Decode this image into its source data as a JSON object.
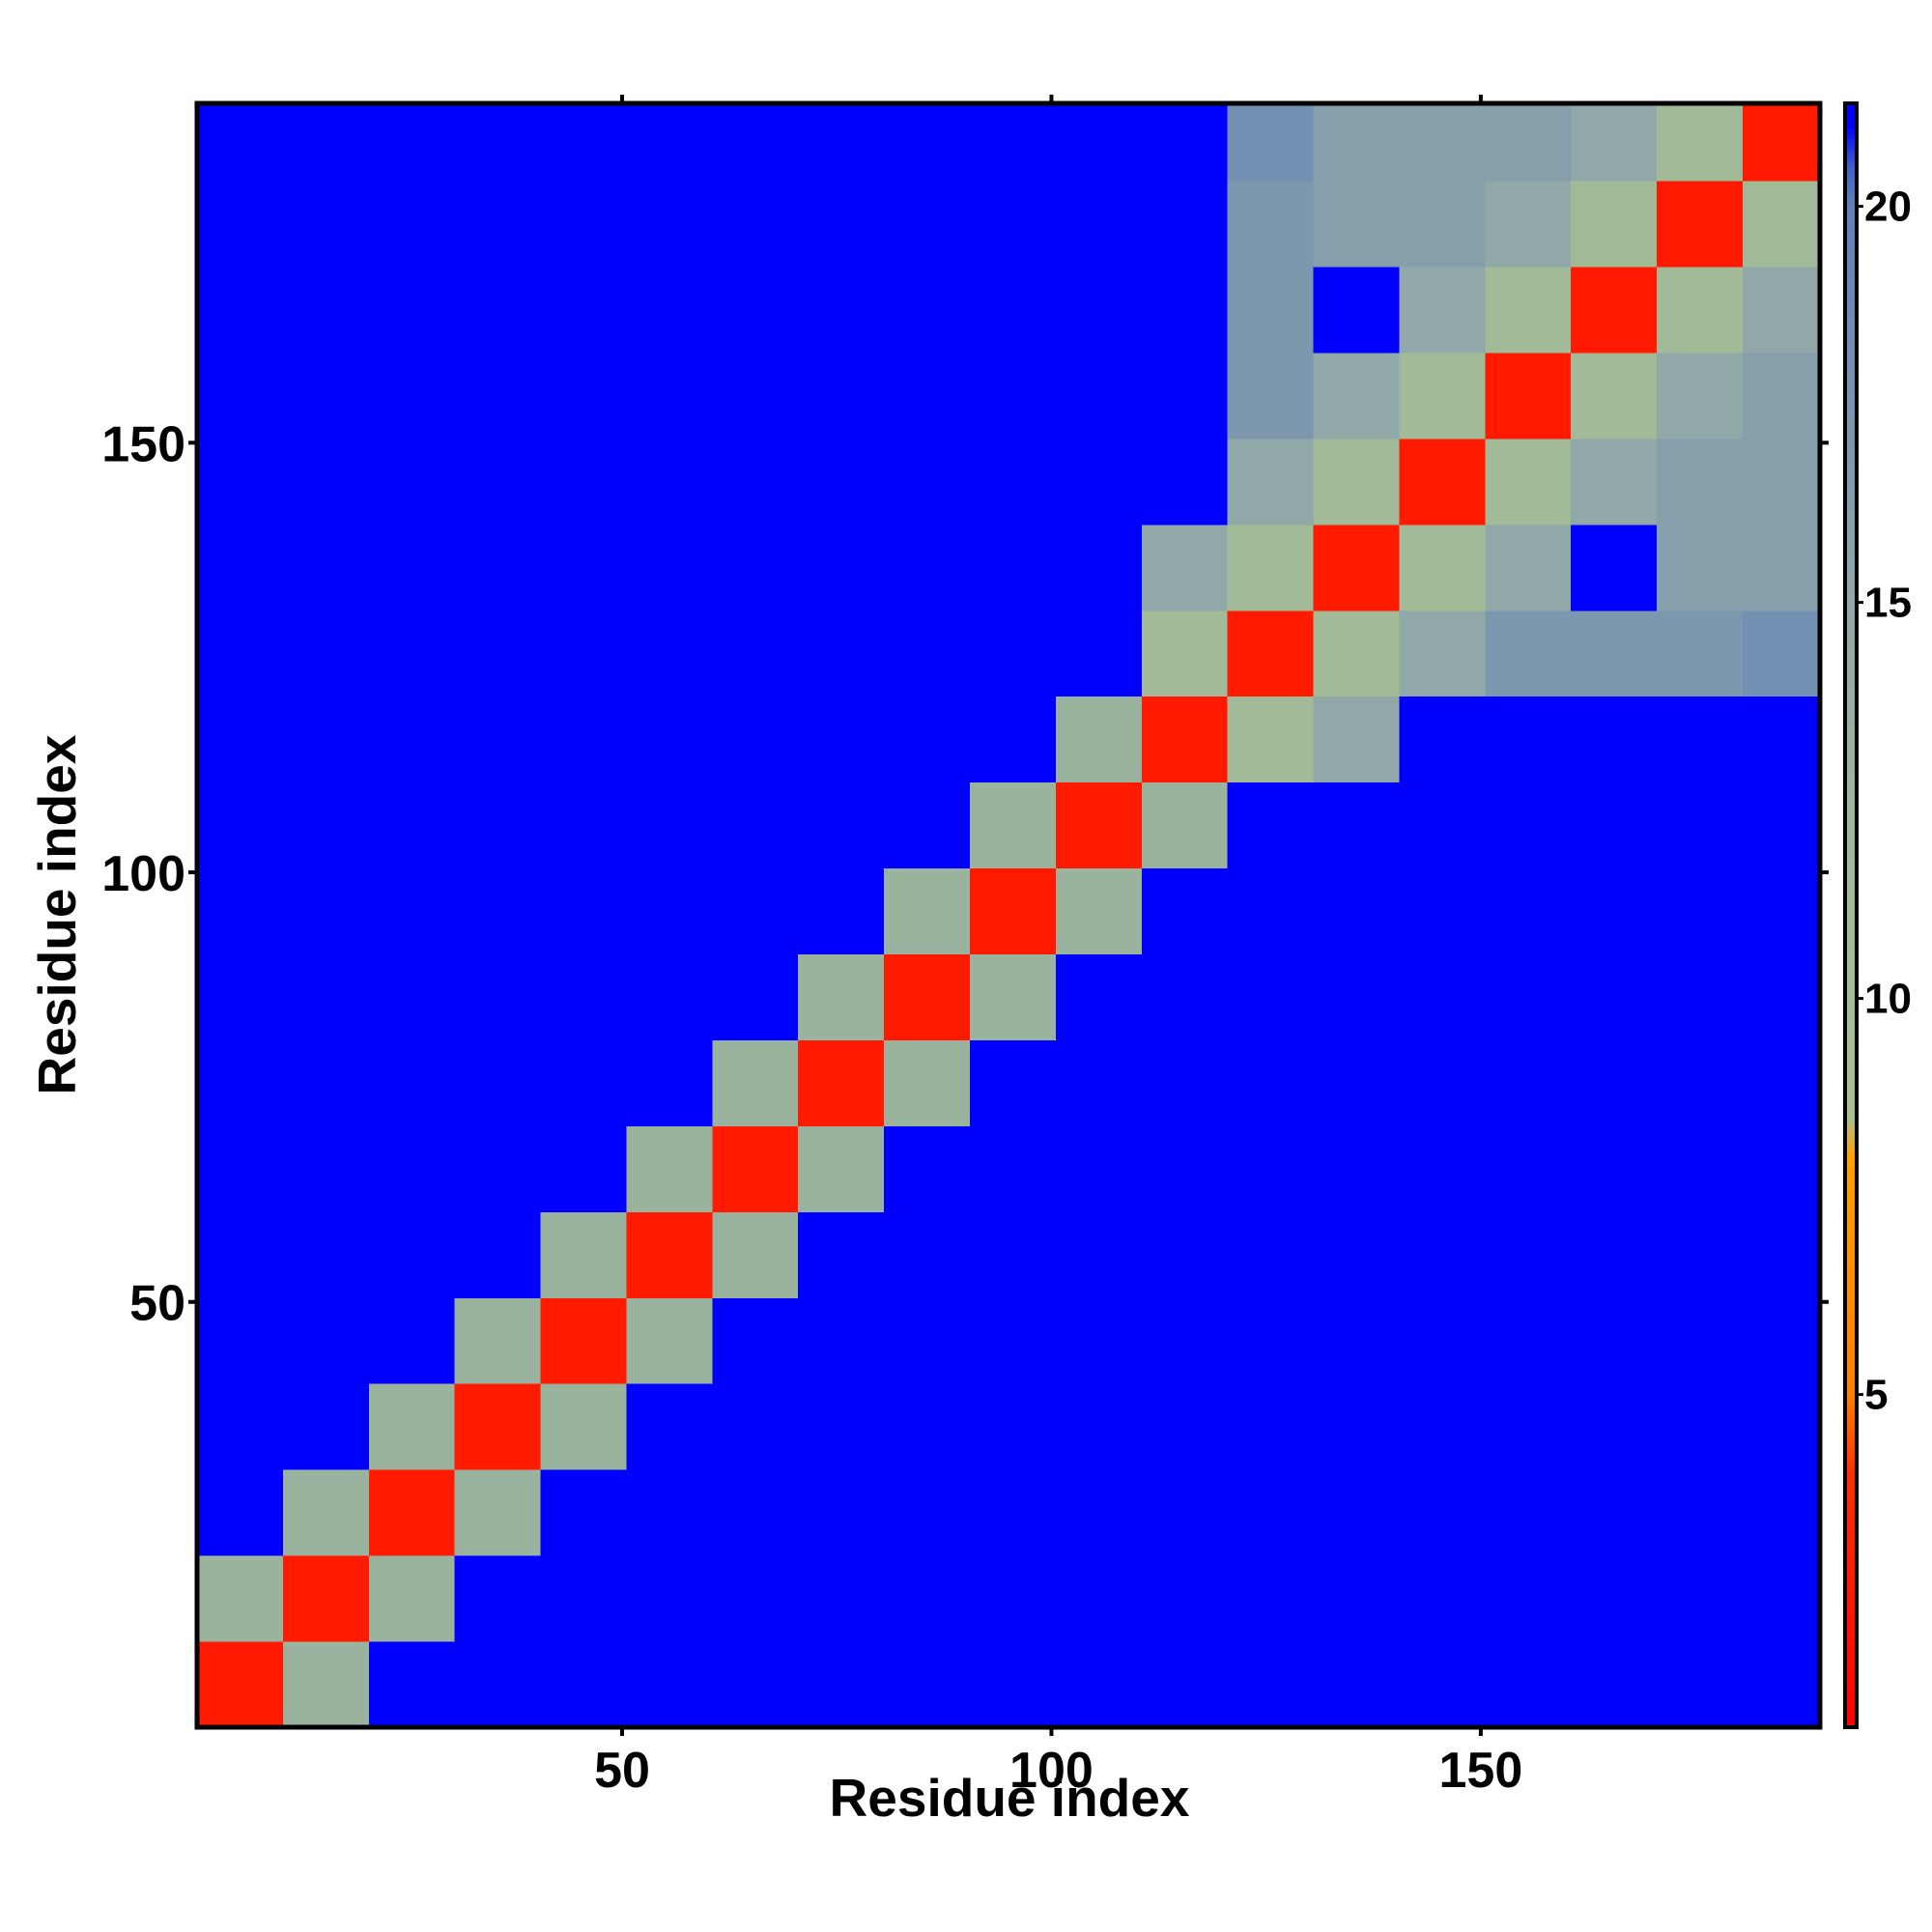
{
  "chart_data": {
    "type": "heatmap",
    "xlabel": "Residue index",
    "ylabel": "Residue index",
    "x_bins": [
      0.5,
      10.5,
      20.5,
      30.5,
      40.5,
      50.5,
      60.5,
      70.5,
      80.5,
      90.5,
      100.5,
      110.5,
      120.5,
      130.5,
      140.5,
      150.5,
      160.5,
      170.5,
      180.5,
      189.5
    ],
    "y_bins": [
      0.5,
      10.5,
      20.5,
      30.5,
      40.5,
      50.5,
      60.5,
      70.5,
      80.5,
      90.5,
      100.5,
      110.5,
      120.5,
      130.5,
      140.5,
      150.5,
      160.5,
      170.5,
      180.5,
      189.5
    ],
    "xlim": [
      0.5,
      189.5
    ],
    "ylim": [
      0.5,
      189.5
    ],
    "xticks": [
      50,
      100,
      150
    ],
    "yticks": [
      50,
      100,
      150
    ],
    "zlim": [
      0.8,
      21.3
    ],
    "zticks": [
      5,
      10,
      15,
      20
    ],
    "colorscale": [
      [
        0.8,
        "#ff0000"
      ],
      [
        4,
        "#ff3000"
      ],
      [
        5,
        "#ff8000"
      ],
      [
        8,
        "#ffa000"
      ],
      [
        8.5,
        "#a8c090"
      ],
      [
        12,
        "#9fb89a"
      ],
      [
        15,
        "#90a8a8"
      ],
      [
        20,
        "#6080b8"
      ],
      [
        20.5,
        "#4060c8"
      ],
      [
        21,
        "#0000ff"
      ]
    ],
    "z": [
      [
        2.5,
        13,
        21,
        21,
        21,
        21,
        21,
        21,
        21,
        21,
        21,
        21,
        21,
        21,
        21,
        21,
        21,
        21,
        21
      ],
      [
        13,
        2.5,
        13,
        21,
        21,
        21,
        21,
        21,
        21,
        21,
        21,
        21,
        21,
        21,
        21,
        21,
        21,
        21,
        21
      ],
      [
        21,
        13,
        2.5,
        13,
        21,
        21,
        21,
        21,
        21,
        21,
        21,
        21,
        21,
        21,
        21,
        21,
        21,
        21,
        21
      ],
      [
        21,
        21,
        13,
        2.5,
        13,
        21,
        21,
        21,
        21,
        21,
        21,
        21,
        21,
        21,
        21,
        21,
        21,
        21,
        21
      ],
      [
        21,
        21,
        21,
        13,
        2.5,
        13,
        21,
        21,
        21,
        21,
        21,
        21,
        21,
        21,
        21,
        21,
        21,
        21,
        21
      ],
      [
        21,
        21,
        21,
        21,
        13,
        2.5,
        13,
        21,
        21,
        21,
        21,
        21,
        21,
        21,
        21,
        21,
        21,
        21,
        21
      ],
      [
        21,
        21,
        21,
        21,
        21,
        13,
        2.5,
        13,
        21,
        21,
        21,
        21,
        21,
        21,
        21,
        21,
        21,
        21,
        21
      ],
      [
        21,
        21,
        21,
        21,
        21,
        21,
        13,
        2.5,
        13,
        21,
        21,
        21,
        21,
        21,
        21,
        21,
        21,
        21,
        21
      ],
      [
        21,
        21,
        21,
        21,
        21,
        21,
        21,
        13,
        2.5,
        13,
        21,
        21,
        21,
        21,
        21,
        21,
        21,
        21,
        21
      ],
      [
        21,
        21,
        21,
        21,
        21,
        21,
        21,
        21,
        13,
        2.5,
        13,
        21,
        21,
        21,
        21,
        21,
        21,
        21,
        21
      ],
      [
        21,
        21,
        21,
        21,
        21,
        21,
        21,
        21,
        21,
        13,
        2.5,
        13,
        21,
        21,
        21,
        21,
        21,
        21,
        21
      ],
      [
        21,
        21,
        21,
        21,
        21,
        21,
        21,
        21,
        21,
        21,
        13,
        2.5,
        11,
        15,
        21,
        21,
        21,
        21,
        21
      ],
      [
        21,
        21,
        21,
        21,
        21,
        21,
        21,
        21,
        21,
        21,
        21,
        11,
        2.5,
        11,
        15,
        17,
        17,
        17,
        18
      ],
      [
        21,
        21,
        21,
        21,
        21,
        21,
        21,
        21,
        21,
        21,
        21,
        15,
        11,
        2.5,
        11,
        15,
        21,
        16,
        16
      ],
      [
        21,
        21,
        21,
        21,
        21,
        21,
        21,
        21,
        21,
        21,
        21,
        21,
        15,
        11,
        2.5,
        11,
        15,
        16,
        16
      ],
      [
        21,
        21,
        21,
        21,
        21,
        21,
        21,
        21,
        21,
        21,
        21,
        21,
        17,
        15,
        11,
        2.5,
        11,
        15,
        16
      ],
      [
        21,
        21,
        21,
        21,
        21,
        21,
        21,
        21,
        21,
        21,
        21,
        21,
        17,
        21,
        15,
        11,
        2.5,
        11,
        15
      ],
      [
        21,
        21,
        21,
        21,
        21,
        21,
        21,
        21,
        21,
        21,
        21,
        21,
        17,
        16,
        16,
        15,
        11,
        2.5,
        11
      ],
      [
        21,
        21,
        21,
        21,
        21,
        21,
        21,
        21,
        21,
        21,
        21,
        21,
        18,
        16,
        16,
        16,
        15,
        11,
        2.5
      ]
    ]
  }
}
